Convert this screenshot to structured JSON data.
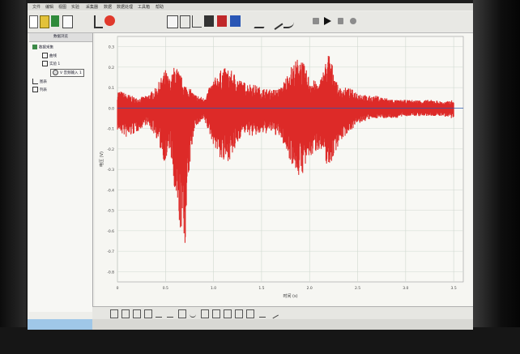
{
  "menu": {
    "items": [
      "文件",
      "编辑",
      "视图",
      "实验",
      "采集器",
      "数据",
      "数据处理",
      "工具箱",
      "帮助"
    ]
  },
  "tree_panel": {
    "header": "数据浏览",
    "items": [
      "数据采集",
      "曲线",
      "实验 1",
      "V 音频输入 1",
      "图表",
      "列表"
    ]
  },
  "chart": {
    "ylabel": "电压 (V)",
    "xlabel": "时间 (s)",
    "yticks": [
      "0.3",
      "0.2",
      "0.1",
      "0.0",
      "-0.1",
      "-0.2",
      "-0.3",
      "-0.4",
      "-0.5",
      "-0.6",
      "-0.7",
      "-0.8"
    ],
    "xticks": [
      "0",
      "0.5",
      "1.0",
      "1.5",
      "2.0",
      "2.5",
      "3.0",
      "3.5"
    ]
  },
  "chart_data": {
    "type": "line",
    "xlabel": "时间 (s)",
    "ylabel": "电压 (V)",
    "xlim": [
      0,
      3.6
    ],
    "ylim": [
      -0.85,
      0.35
    ],
    "series": [
      {
        "color": "#dd2a28",
        "x": [
          0.0,
          0.1,
          0.2,
          0.3,
          0.4,
          0.5,
          0.55,
          0.6,
          0.7,
          0.75,
          0.8,
          0.9,
          1.0,
          1.1,
          1.2,
          1.3,
          1.4,
          1.5,
          1.6,
          1.7,
          1.8,
          1.9,
          2.0,
          2.1,
          2.2,
          2.3,
          2.4,
          2.5,
          2.6,
          2.7,
          2.8,
          2.9,
          3.0,
          3.1,
          3.2,
          3.3,
          3.4,
          3.5
        ],
        "upper": [
          0.09,
          0.07,
          0.05,
          0.06,
          0.1,
          0.19,
          0.14,
          0.22,
          0.12,
          0.1,
          0.07,
          0.05,
          0.14,
          0.2,
          0.18,
          0.13,
          0.12,
          0.1,
          0.09,
          0.1,
          0.2,
          0.26,
          0.15,
          0.12,
          0.28,
          0.1,
          0.1,
          0.08,
          0.06,
          0.06,
          0.05,
          0.04,
          0.04,
          0.04,
          0.04,
          0.04,
          0.03,
          0.04
        ],
        "lower": [
          -0.11,
          -0.15,
          -0.12,
          -0.08,
          -0.14,
          -0.28,
          -0.2,
          -0.48,
          -0.7,
          -0.3,
          -0.1,
          -0.06,
          -0.18,
          -0.28,
          -0.24,
          -0.12,
          -0.14,
          -0.13,
          -0.12,
          -0.15,
          -0.26,
          -0.35,
          -0.25,
          -0.2,
          -0.3,
          -0.18,
          -0.12,
          -0.08,
          -0.06,
          -0.05,
          -0.05,
          -0.05,
          -0.04,
          -0.04,
          -0.04,
          -0.04,
          -0.04,
          -0.06
        ]
      }
    ],
    "grid": true
  },
  "colors": {
    "signal": "#dd2a28",
    "baseline": "#2a58b0",
    "grid": "#cfd8cf"
  }
}
